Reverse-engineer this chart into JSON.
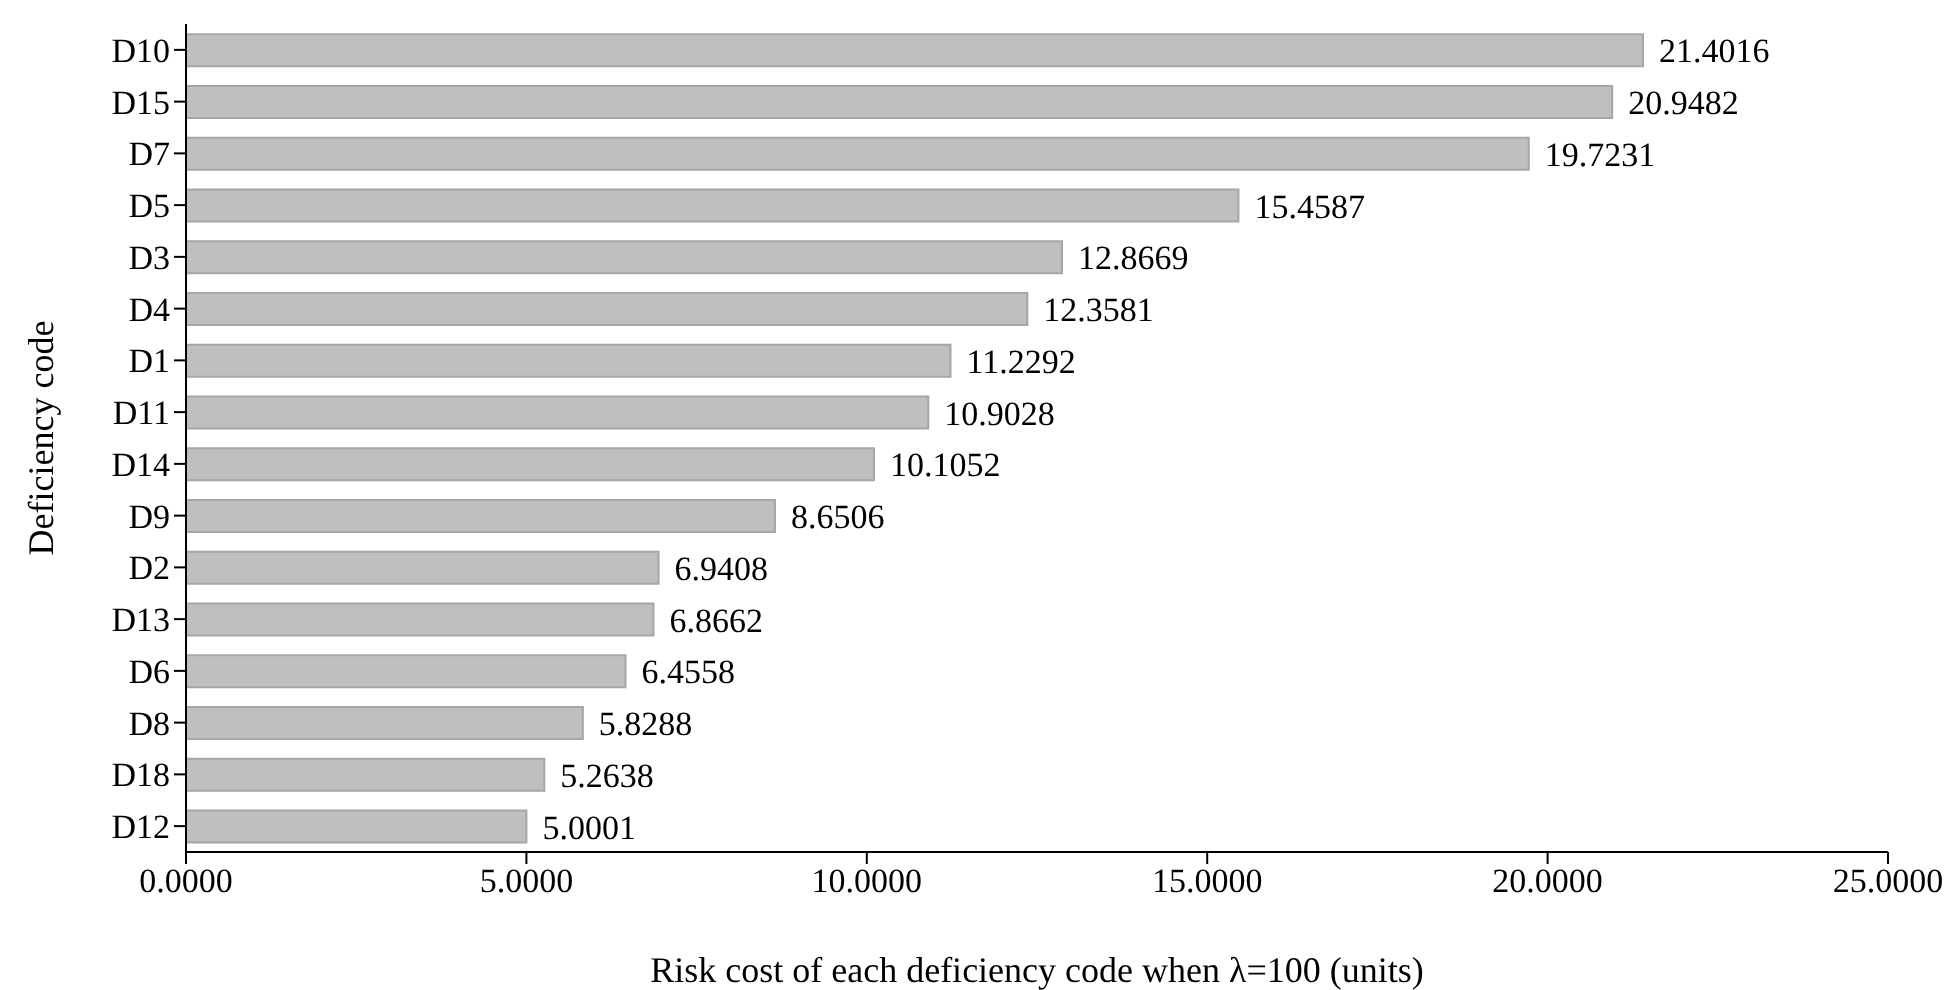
{
  "chart_data": {
    "type": "bar",
    "orientation": "horizontal",
    "xlabel": "Risk cost of each deficiency code when λ=100 (units)",
    "ylabel": "Deficiency code",
    "categories": [
      "D10",
      "D15",
      "D7",
      "D5",
      "D3",
      "D4",
      "D1",
      "D11",
      "D14",
      "D9",
      "D2",
      "D13",
      "D6",
      "D8",
      "D18",
      "D12"
    ],
    "values": [
      21.4016,
      20.9482,
      19.7231,
      15.4587,
      12.8669,
      12.3581,
      11.2292,
      10.9028,
      10.1052,
      8.6506,
      6.9408,
      6.8662,
      6.4558,
      5.8288,
      5.2638,
      5.0001
    ],
    "color": "#bfbfbf",
    "data_labels": true,
    "grid": false,
    "legend": false,
    "xlim": [
      0,
      25
    ],
    "xticks": [
      {
        "value": 0,
        "label": "0.0000"
      },
      {
        "value": 5,
        "label": "5.0000"
      },
      {
        "value": 10,
        "label": "10.0000"
      },
      {
        "value": 15,
        "label": "15.0000"
      },
      {
        "value": 20,
        "label": "20.0000"
      },
      {
        "value": 25,
        "label": "25.0000"
      }
    ]
  }
}
